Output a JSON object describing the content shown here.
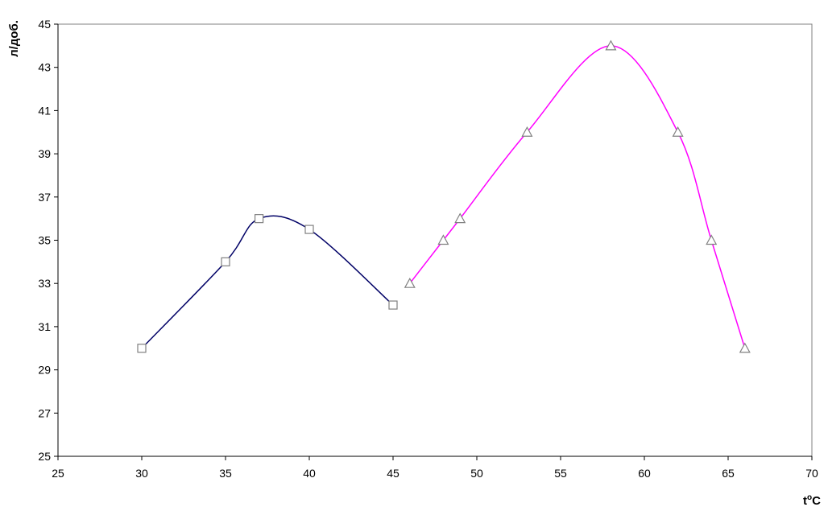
{
  "chart_data": {
    "type": "line",
    "title": "",
    "xlabel_base": "t",
    "xlabel_sup": "o",
    "xlabel_tail": "C",
    "ylabel": "л/доб.",
    "xlim": [
      25,
      70
    ],
    "ylim": [
      25,
      45
    ],
    "xticks": [
      25,
      30,
      35,
      40,
      45,
      50,
      55,
      60,
      65,
      70
    ],
    "yticks": [
      25,
      27,
      29,
      31,
      33,
      35,
      37,
      39,
      41,
      43,
      45
    ],
    "grid": false,
    "legend": "none",
    "series": [
      {
        "color": "#000066",
        "marker": "square",
        "x": [
          30,
          35,
          37,
          40,
          45
        ],
        "y": [
          30,
          34,
          36,
          35.5,
          32
        ]
      },
      {
        "color": "#ff00ff",
        "marker": "triangle",
        "x": [
          46,
          48,
          49,
          53,
          58,
          62,
          64,
          66
        ],
        "y": [
          33,
          35,
          36,
          40,
          44,
          40,
          35,
          30
        ]
      }
    ]
  }
}
